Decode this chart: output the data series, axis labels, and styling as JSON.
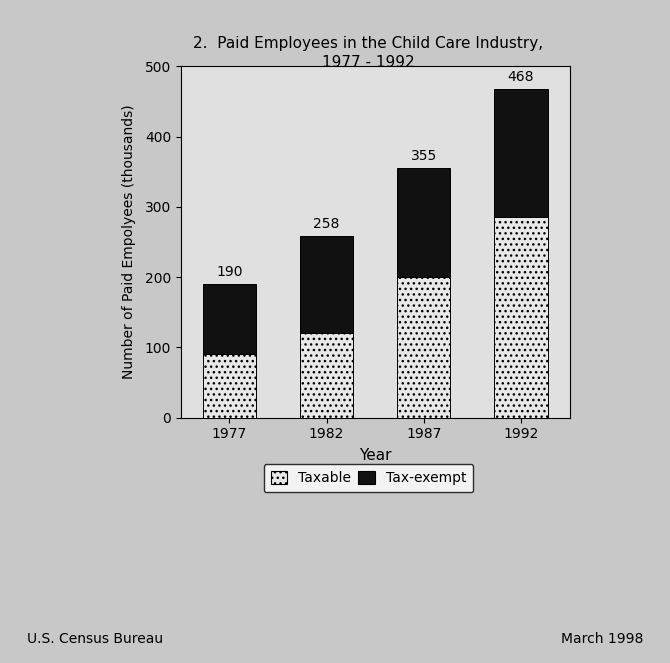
{
  "title_line1": "2.  Paid Employees in the Child Care Industry,",
  "title_line2": "1977 - 1992",
  "xlabel": "Year",
  "ylabel": "Number of Paid Empolyees (thousands)",
  "years": [
    "1977",
    "1982",
    "1987",
    "1992"
  ],
  "taxable": [
    90,
    120,
    200,
    285
  ],
  "tax_exempt": [
    100,
    138,
    155,
    183
  ],
  "totals": [
    190,
    258,
    355,
    468
  ],
  "ylim": [
    0,
    500
  ],
  "yticks": [
    0,
    100,
    200,
    300,
    400,
    500
  ],
  "bar_color_taxable": "#e8e8e8",
  "bar_color_tax_exempt": "#111111",
  "bar_width": 0.55,
  "background_color": "#c8c8c8",
  "plot_bg_color": "#e0e0e0",
  "footer_left": "U.S. Census Bureau",
  "footer_right": "March 1998",
  "legend_labels": [
    "Taxable",
    "Tax-exempt"
  ]
}
